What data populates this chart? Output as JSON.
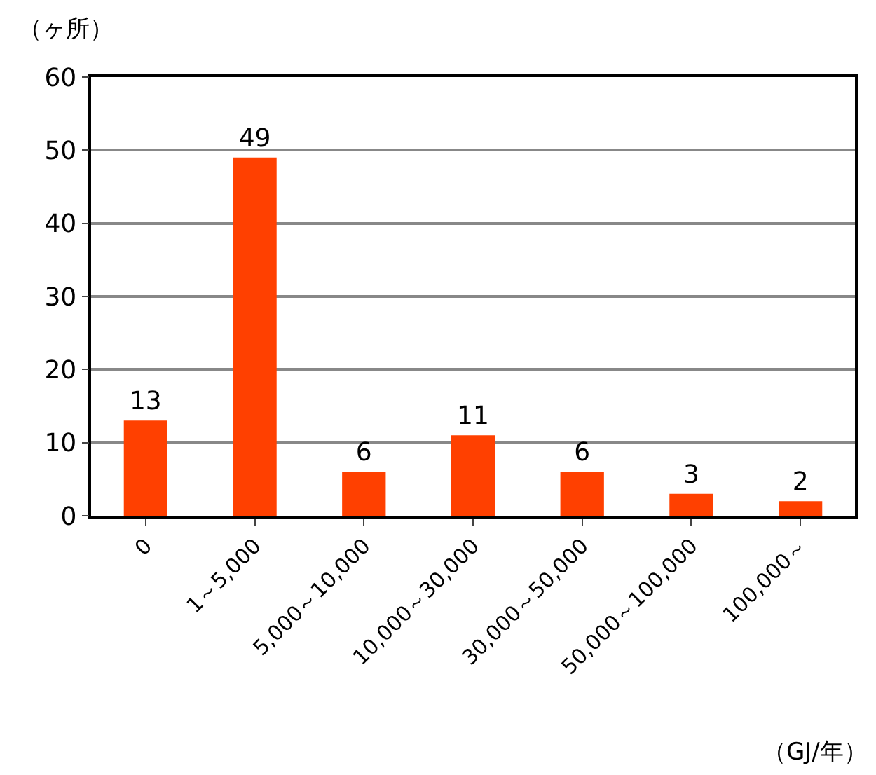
{
  "chart_data": {
    "type": "bar",
    "ylabel": "（ヶ所）",
    "xlabel": "（GJ/年）",
    "categories": [
      "0",
      "1～5,000",
      "5,000～10,000",
      "10,000～30,000",
      "30,000～50,000",
      "50,000～100,000",
      "100,000～"
    ],
    "values": [
      13,
      49,
      6,
      11,
      6,
      3,
      2
    ],
    "color": "#ff4000",
    "ylim": [
      0,
      60
    ],
    "yticks": [
      0,
      10,
      20,
      30,
      40,
      50,
      60
    ],
    "grid": "y",
    "data_labels": true,
    "legend": false
  }
}
